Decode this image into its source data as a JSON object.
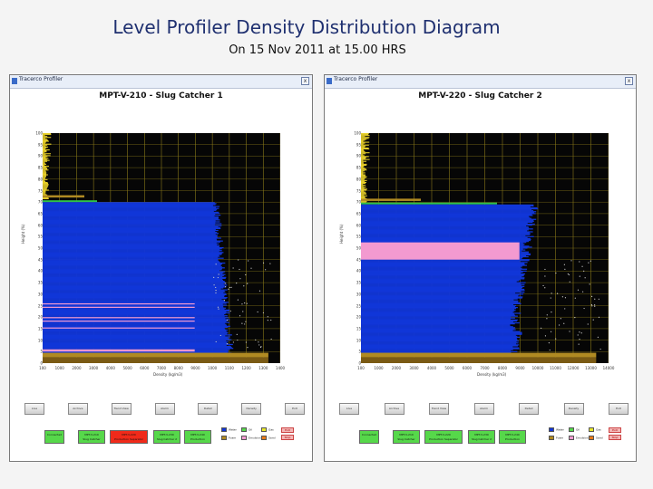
{
  "slide": {
    "title": "Level Profiler Density Distribution Diagram",
    "subtitle": "On 15 Nov 2011 at 15.00 HRS"
  },
  "colors": {
    "title_color": "#1f3070",
    "plot_bg": "#060606",
    "profile_blue": "#1136d8",
    "gas_yellow": "#e8d02a",
    "oil_brown": "#b08a22",
    "interface_green": "#2ec24a",
    "emulsion_pink": "#f39ad0",
    "grid": "#8a7a1a"
  },
  "windows": [
    {
      "window_title": "Tracerco Profiler",
      "close_glyph": "x",
      "chart_title": "MPT-V-210 - Slug Catcher 1",
      "y_axis_label": "Height (%)",
      "x_axis_label": "Density (kg/m3)",
      "y_ticks": [
        "100",
        "95",
        "90",
        "85",
        "80",
        "75",
        "70",
        "65",
        "60",
        "55",
        "50",
        "45",
        "40",
        "35",
        "30",
        "25",
        "20",
        "15",
        "10",
        "5",
        "0"
      ],
      "x_ticks": [
        "100",
        "1000",
        "2000",
        "3000",
        "4000",
        "5000",
        "6000",
        "7000",
        "8000",
        "9000",
        "1000",
        "1100",
        "1200",
        "1300",
        "1400"
      ],
      "buttons": [
        "Live",
        "Archive",
        "Trend View",
        "Alarm",
        "Detail",
        "Density",
        "Exit"
      ],
      "status": [
        {
          "label": "Connected",
          "color": "#56d84a"
        },
        {
          "label": "MPT-V-210\nSlug Catcher",
          "color": "#56d84a"
        },
        {
          "label": "MPT-V-220\nProduction Separator",
          "color": "#f02a1a"
        },
        {
          "label": "MPT-V-230\nSlug Catcher 2",
          "color": "#56d84a"
        },
        {
          "label": "MPT-V-240\nProduction Separator",
          "color": "#56d84a"
        }
      ],
      "legend": [
        {
          "label": "Water",
          "color": "#1136d8"
        },
        {
          "label": "Oil",
          "color": "#56d84a"
        },
        {
          "label": "Gas",
          "color": "#e8e82a"
        },
        {
          "label": "Foam",
          "color": "#b08a22"
        },
        {
          "label": "Emulsion",
          "color": "#f39ad0"
        },
        {
          "label": "Sand",
          "color": "#e87a1a"
        }
      ],
      "red_buttons": [
        "Exit",
        "Stop"
      ],
      "profile": {
        "description_free": true,
        "emulsion_levels": [
          29,
          26,
          22,
          6,
          4
        ]
      }
    },
    {
      "window_title": "Tracerco Profiler",
      "close_glyph": "x",
      "chart_title": "MPT-V-220 - Slug Catcher 2",
      "y_axis_label": "Height (%)",
      "x_axis_label": "Density (kg/m3)",
      "y_ticks": [
        "100",
        "95",
        "90",
        "85",
        "80",
        "75",
        "70",
        "65",
        "60",
        "55",
        "50",
        "45",
        "40",
        "35",
        "30",
        "25",
        "20",
        "15",
        "10",
        "5",
        "0"
      ],
      "x_ticks": [
        "100",
        "1000",
        "2000",
        "3000",
        "4000",
        "5000",
        "6000",
        "7000",
        "8000",
        "9000",
        "10000",
        "11000",
        "12000",
        "13000",
        "14000"
      ],
      "buttons": [
        "Live",
        "Archive",
        "Trend View",
        "Alarm",
        "Detail",
        "Density",
        "Exit"
      ],
      "status": [
        {
          "label": "Connected",
          "color": "#56d84a"
        },
        {
          "label": "MPT-V-210\nSlug Catcher",
          "color": "#56d84a"
        },
        {
          "label": "MPT-V-220\nProduction Separator",
          "color": "#56d84a"
        },
        {
          "label": "MPT-V-230\nSlug Catcher 2",
          "color": "#56d84a"
        },
        {
          "label": "MPT-V-240\nProduction Separator",
          "color": "#56d84a"
        }
      ],
      "legend": [
        {
          "label": "Water",
          "color": "#1136d8"
        },
        {
          "label": "Oil",
          "color": "#56d84a"
        },
        {
          "label": "Gas",
          "color": "#e8e82a"
        },
        {
          "label": "Foam",
          "color": "#b08a22"
        },
        {
          "label": "Emulsion",
          "color": "#f39ad0"
        },
        {
          "label": "Sand",
          "color": "#e87a1a"
        }
      ],
      "red_buttons": [
        "Exit",
        "Stop"
      ],
      "profile": {
        "emulsion_levels": [
          53,
          52,
          51,
          50,
          49
        ]
      }
    }
  ]
}
